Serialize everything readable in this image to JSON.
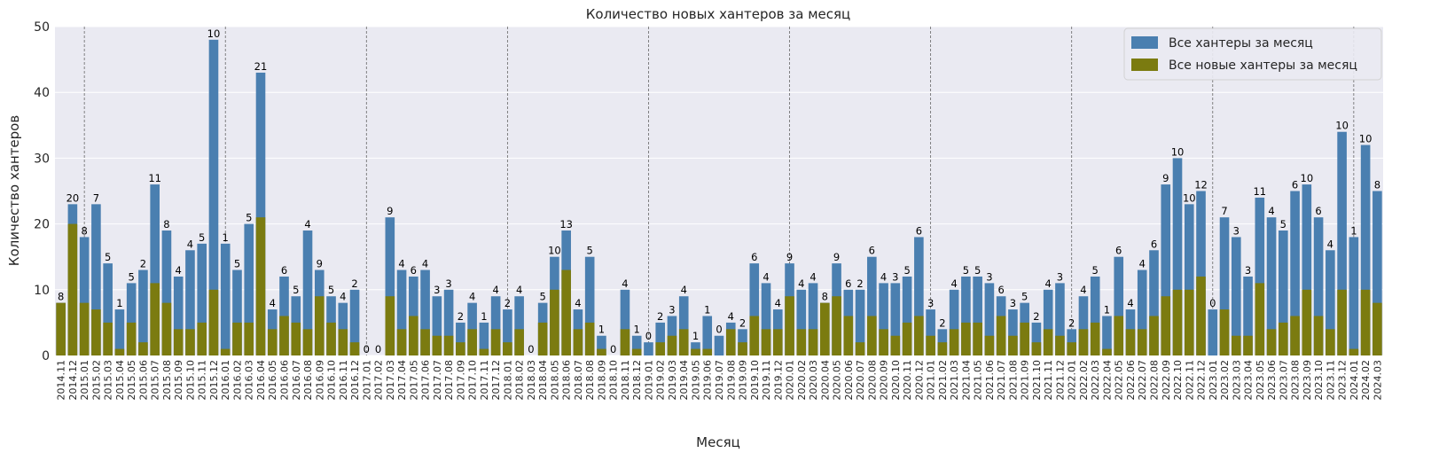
{
  "chart_data": {
    "type": "bar",
    "title": "Количество новых хантеров за месяц",
    "xlabel": "Месяц",
    "ylabel": "Количество хантеров",
    "ylim": [
      0,
      50
    ],
    "yticks": [
      0,
      10,
      20,
      30,
      40,
      50
    ],
    "grid": true,
    "legend_position": "top-right",
    "colors": {
      "total": "#4a7fb0",
      "new": "#7b7b10",
      "background": "#eaeaf2",
      "grid": "#ffffff",
      "separator": "#666666"
    },
    "year_separators": [
      "2015.01",
      "2016.01",
      "2017.01",
      "2018.01",
      "2019.01",
      "2020.01",
      "2021.01",
      "2022.01",
      "2023.01",
      "2024.01"
    ],
    "categories": [
      "2014.11",
      "2014.12",
      "2015.01",
      "2015.02",
      "2015.03",
      "2015.04",
      "2015.05",
      "2015.06",
      "2015.07",
      "2015.08",
      "2015.09",
      "2015.10",
      "2015.11",
      "2015.12",
      "2016.01",
      "2016.02",
      "2016.03",
      "2016.04",
      "2016.05",
      "2016.06",
      "2016.07",
      "2016.08",
      "2016.09",
      "2016.10",
      "2016.11",
      "2016.12",
      "2017.01",
      "2017.02",
      "2017.03",
      "2017.04",
      "2017.05",
      "2017.06",
      "2017.07",
      "2017.08",
      "2017.09",
      "2017.10",
      "2017.11",
      "2017.12",
      "2018.01",
      "2018.02",
      "2018.03",
      "2018.04",
      "2018.05",
      "2018.06",
      "2018.07",
      "2018.08",
      "2018.09",
      "2018.10",
      "2018.11",
      "2018.12",
      "2019.01",
      "2019.02",
      "2019.03",
      "2019.04",
      "2019.05",
      "2019.06",
      "2019.07",
      "2019.08",
      "2019.09",
      "2019.10",
      "2019.11",
      "2019.12",
      "2020.01",
      "2020.02",
      "2020.03",
      "2020.04",
      "2020.05",
      "2020.06",
      "2020.07",
      "2020.08",
      "2020.09",
      "2020.10",
      "2020.11",
      "2020.12",
      "2021.01",
      "2021.02",
      "2021.03",
      "2021.04",
      "2021.05",
      "2021.06",
      "2021.07",
      "2021.08",
      "2021.09",
      "2021.10",
      "2021.11",
      "2021.12",
      "2022.01",
      "2022.02",
      "2022.03",
      "2022.04",
      "2022.05",
      "2022.06",
      "2022.07",
      "2022.08",
      "2022.09",
      "2022.10",
      "2022.11",
      "2022.12",
      "2023.01",
      "2023.02",
      "2023.03",
      "2023.04",
      "2023.05",
      "2023.06",
      "2023.07",
      "2023.08",
      "2023.09",
      "2023.10",
      "2023.11",
      "2023.12",
      "2024.01",
      "2024.02",
      "2024.03"
    ],
    "series": [
      {
        "name": "Все хантеры за месяц",
        "values": [
          8,
          23,
          18,
          23,
          14,
          7,
          11,
          13,
          26,
          19,
          12,
          16,
          17,
          48,
          17,
          13,
          20,
          43,
          7,
          12,
          9,
          19,
          13,
          9,
          8,
          10,
          0,
          0,
          21,
          13,
          12,
          13,
          9,
          10,
          5,
          8,
          5,
          9,
          7,
          9,
          0,
          8,
          15,
          19,
          7,
          15,
          3,
          0,
          10,
          3,
          2,
          5,
          6,
          9,
          2,
          6,
          3,
          5,
          4,
          14,
          11,
          7,
          14,
          10,
          11,
          8,
          14,
          10,
          10,
          15,
          11,
          11,
          12,
          18,
          7,
          4,
          10,
          12,
          12,
          11,
          9,
          7,
          8,
          5,
          10,
          11,
          4,
          9,
          12,
          6,
          15,
          7,
          13,
          16,
          26,
          30,
          23,
          25,
          7,
          21,
          18,
          12,
          24,
          21,
          19,
          25,
          26,
          21,
          16,
          34,
          18,
          32,
          25
        ]
      },
      {
        "name": "Все новые хантеры за месяц",
        "values": [
          8,
          20,
          8,
          7,
          5,
          1,
          5,
          2,
          11,
          8,
          4,
          4,
          5,
          10,
          1,
          5,
          5,
          21,
          4,
          6,
          5,
          4,
          9,
          5,
          4,
          2,
          0,
          0,
          9,
          4,
          6,
          4,
          3,
          3,
          2,
          4,
          1,
          4,
          2,
          4,
          0,
          5,
          10,
          13,
          4,
          5,
          1,
          0,
          4,
          1,
          0,
          2,
          3,
          4,
          1,
          1,
          0,
          4,
          2,
          6,
          4,
          4,
          9,
          4,
          4,
          8,
          9,
          6,
          2,
          6,
          4,
          3,
          5,
          6,
          3,
          2,
          4,
          5,
          5,
          3,
          6,
          3,
          5,
          2,
          4,
          3,
          2,
          4,
          5,
          1,
          6,
          4,
          4,
          6,
          9,
          10,
          10,
          12,
          0,
          7,
          3,
          3,
          11,
          4,
          5,
          6,
          10,
          6,
          4,
          10,
          1,
          10,
          8
        ]
      }
    ]
  }
}
